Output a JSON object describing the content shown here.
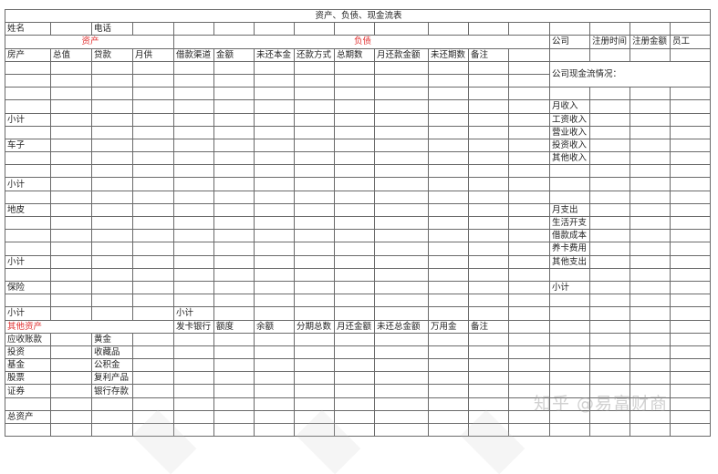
{
  "title": "资产、负债、现金流表",
  "watermark": "知乎 @易富财商",
  "rows": [
    [
      {
        "c": 0,
        "span": 17,
        "t": "资产、负债、现金流表",
        "center": true
      }
    ],
    [
      {
        "c": 0,
        "t": "姓名"
      },
      {
        "c": 2,
        "t": "电话"
      }
    ],
    [
      {
        "c": 0,
        "span": 4,
        "t": "资产",
        "center": true,
        "red": true
      },
      {
        "c": 4,
        "span": 9,
        "t": "负债",
        "center": true,
        "red": true
      },
      {
        "c": 13,
        "t": "公司"
      },
      {
        "c": 14,
        "t": "注册时间"
      },
      {
        "c": 15,
        "t": "注册金额"
      },
      {
        "c": 16,
        "t": "员工"
      }
    ],
    [
      {
        "c": 0,
        "t": "房产"
      },
      {
        "c": 1,
        "t": "总值"
      },
      {
        "c": 2,
        "t": "贷款"
      },
      {
        "c": 3,
        "t": "月供"
      },
      {
        "c": 4,
        "t": "借款渠道"
      },
      {
        "c": 5,
        "t": "金额"
      },
      {
        "c": 6,
        "t": "未还本金"
      },
      {
        "c": 7,
        "t": "还款方式"
      },
      {
        "c": 8,
        "t": "总期数"
      },
      {
        "c": 9,
        "t": "月还款金额"
      },
      {
        "c": 10,
        "t": "未还期数"
      },
      {
        "c": 11,
        "t": "备注"
      }
    ],
    [
      {
        "c": 13,
        "span": 4,
        "rowspan": 2,
        "t": "公司现金流情况："
      }
    ],
    [],
    [],
    [
      {
        "c": 13,
        "t": "月收入"
      }
    ],
    [
      {
        "c": 0,
        "t": "小计"
      },
      {
        "c": 13,
        "t": "工资收入"
      }
    ],
    [
      {
        "c": 13,
        "t": "营业收入"
      }
    ],
    [
      {
        "c": 0,
        "t": "车子"
      },
      {
        "c": 13,
        "t": "投资收入"
      }
    ],
    [
      {
        "c": 13,
        "t": "其他收入"
      }
    ],
    [],
    [
      {
        "c": 0,
        "t": "小计"
      }
    ],
    [],
    [
      {
        "c": 0,
        "t": "地皮"
      },
      {
        "c": 13,
        "t": "月支出"
      }
    ],
    [
      {
        "c": 13,
        "t": "生活开支"
      }
    ],
    [
      {
        "c": 13,
        "t": "借款成本"
      }
    ],
    [
      {
        "c": 13,
        "t": "养卡费用"
      }
    ],
    [
      {
        "c": 0,
        "t": "小计"
      },
      {
        "c": 13,
        "t": "其他支出"
      }
    ],
    [],
    [
      {
        "c": 0,
        "t": "保险"
      },
      {
        "c": 13,
        "t": "小计"
      }
    ],
    [],
    [
      {
        "c": 0,
        "t": "小计"
      },
      {
        "c": 4,
        "t": "小计"
      }
    ],
    [
      {
        "c": 0,
        "span": 4,
        "t": "其他资产",
        "red": true
      },
      {
        "c": 4,
        "t": "发卡银行"
      },
      {
        "c": 5,
        "t": "额度"
      },
      {
        "c": 6,
        "t": "余额"
      },
      {
        "c": 7,
        "t": "分期总数"
      },
      {
        "c": 8,
        "t": "月还金额"
      },
      {
        "c": 9,
        "t": "未还总金额"
      },
      {
        "c": 10,
        "t": "万用金"
      },
      {
        "c": 11,
        "t": "备注"
      }
    ],
    [
      {
        "c": 0,
        "t": "应收账款"
      },
      {
        "c": 2,
        "t": "黄金"
      }
    ],
    [
      {
        "c": 0,
        "t": "投资"
      },
      {
        "c": 2,
        "t": "收藏品"
      }
    ],
    [
      {
        "c": 0,
        "t": "基金"
      },
      {
        "c": 2,
        "t": "公积金"
      }
    ],
    [
      {
        "c": 0,
        "t": "股票"
      },
      {
        "c": 2,
        "t": "复利产品"
      }
    ],
    [
      {
        "c": 0,
        "t": "证券"
      },
      {
        "c": 2,
        "t": "银行存款"
      }
    ],
    [],
    [
      {
        "c": 0,
        "t": "总资产"
      }
    ],
    []
  ]
}
